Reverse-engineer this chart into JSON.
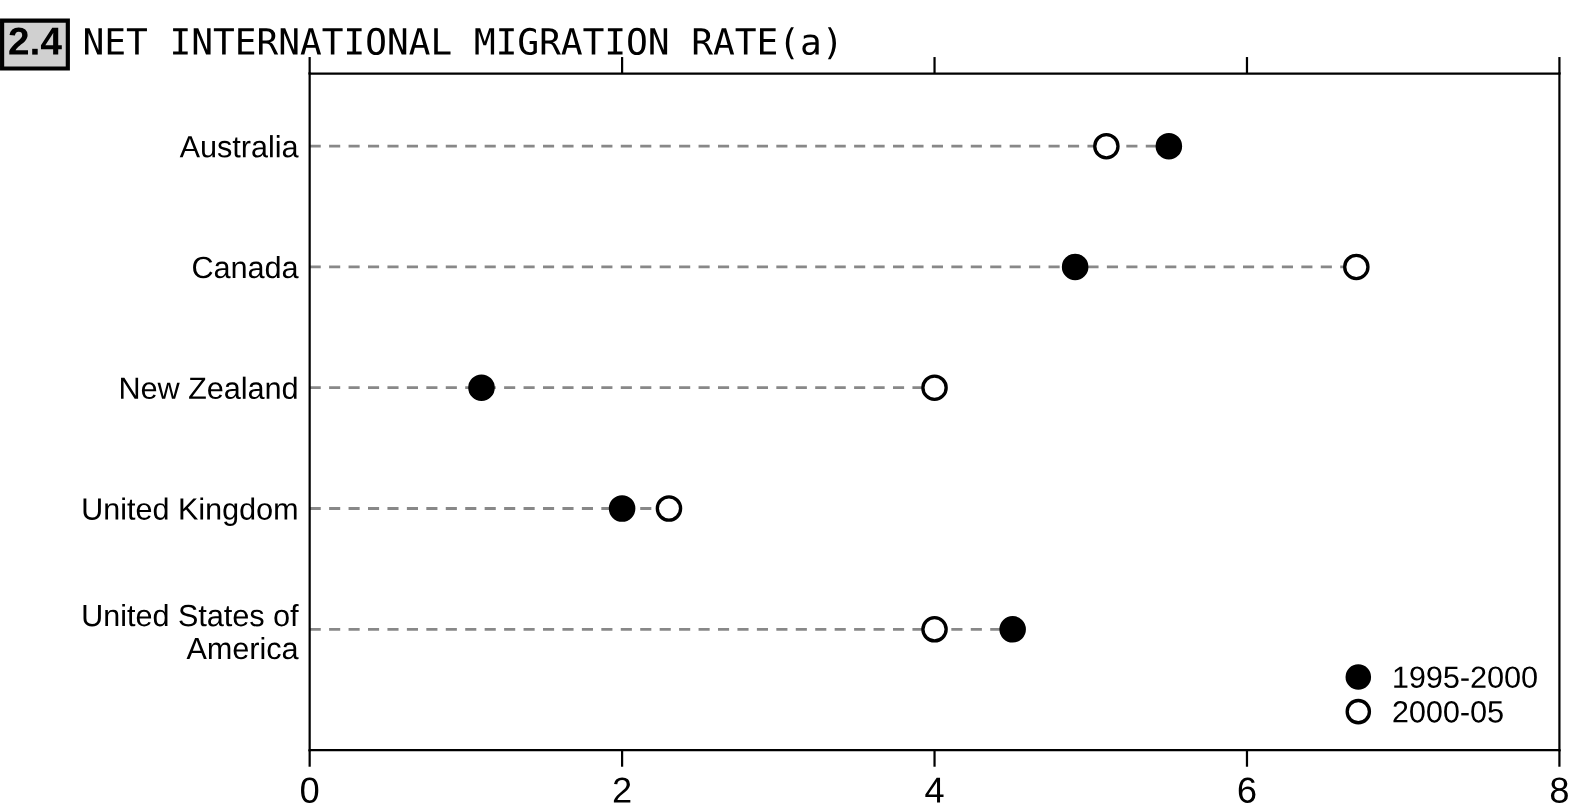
{
  "chart_data": {
    "type": "lollipop",
    "orientation": "horizontal",
    "title": "NET INTERNATIONAL MIGRATION RATE(a)",
    "annotations": [
      "2.4"
    ],
    "categories": [
      "Australia",
      "Canada",
      "New Zealand",
      "United Kingdom",
      "United States of\nAmerica"
    ],
    "series": [
      {
        "name": "1995-2000",
        "color": "#000000",
        "values": [
          5.5,
          4.9,
          1.1,
          2.0,
          4.5
        ]
      },
      {
        "name": "2000-05",
        "color": "#ffffff",
        "values": [
          5.1,
          6.7,
          4.0,
          2.3,
          4.0
        ]
      }
    ],
    "xlim": [
      0,
      8
    ],
    "xticks": [
      0,
      2,
      4,
      6,
      8
    ],
    "marker": "circle",
    "line_style": "dashed",
    "legend": "bottom right",
    "grid": false
  }
}
